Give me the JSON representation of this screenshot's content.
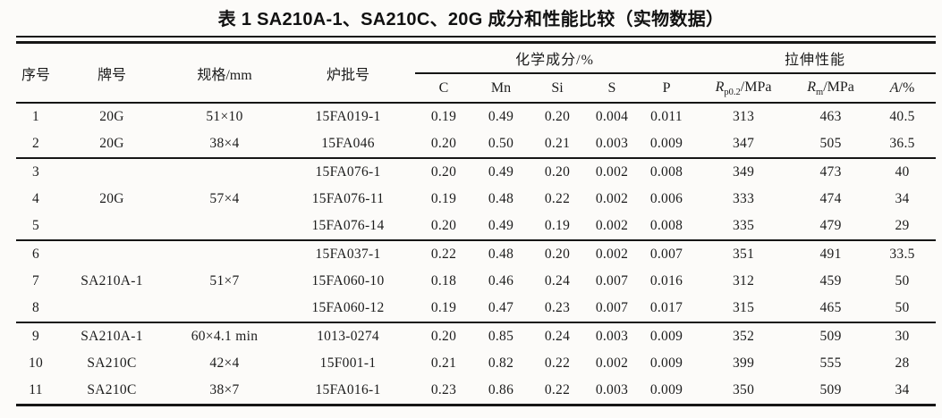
{
  "title": "表 1  SA210A-1、SA210C、20G 成分和性能比较（实物数据）",
  "colors": {
    "paper_background": "#fcfbf9",
    "rule_color": "#161616",
    "text_color": "#1c1c1c"
  },
  "header": {
    "seq": "序号",
    "grade": "牌号",
    "spec": "规格/mm",
    "batch": "炉批号",
    "chem_group": "化学成分/%",
    "tensile_group": "拉伸性能",
    "chem": [
      "C",
      "Mn",
      "Si",
      "S",
      "P"
    ],
    "rp": {
      "base": "R",
      "sub": "p0.2",
      "rest": "/MPa"
    },
    "rm": {
      "base": "R",
      "sub": "m",
      "rest": "/MPa"
    },
    "a": {
      "base": "A",
      "rest": "/%"
    }
  },
  "table": {
    "groups": [
      {
        "rows": [
          {
            "seq": "1",
            "grade": "20G",
            "spec": "51×10",
            "batch": "15FA019-1",
            "chem": [
              "0.19",
              "0.49",
              "0.20",
              "0.004",
              "0.011"
            ],
            "rp": "313",
            "rm": "463",
            "a": "40.5"
          },
          {
            "seq": "2",
            "grade": "20G",
            "spec": "38×4",
            "batch": "15FA046",
            "chem": [
              "0.20",
              "0.50",
              "0.21",
              "0.003",
              "0.009"
            ],
            "rp": "347",
            "rm": "505",
            "a": "36.5"
          }
        ]
      },
      {
        "shared": {
          "grade": "20G",
          "spec": "57×4"
        },
        "rows": [
          {
            "seq": "3",
            "batch": "15FA076-1",
            "chem": [
              "0.20",
              "0.49",
              "0.20",
              "0.002",
              "0.008"
            ],
            "rp": "349",
            "rm": "473",
            "a": "40"
          },
          {
            "seq": "4",
            "batch": "15FA076-11",
            "chem": [
              "0.19",
              "0.48",
              "0.22",
              "0.002",
              "0.006"
            ],
            "rp": "333",
            "rm": "474",
            "a": "34"
          },
          {
            "seq": "5",
            "batch": "15FA076-14",
            "chem": [
              "0.20",
              "0.49",
              "0.19",
              "0.002",
              "0.008"
            ],
            "rp": "335",
            "rm": "479",
            "a": "29"
          }
        ]
      },
      {
        "shared": {
          "grade": "SA210A-1",
          "spec": "51×7"
        },
        "rows": [
          {
            "seq": "6",
            "batch": "15FA037-1",
            "chem": [
              "0.22",
              "0.48",
              "0.20",
              "0.002",
              "0.007"
            ],
            "rp": "351",
            "rm": "491",
            "a": "33.5"
          },
          {
            "seq": "7",
            "batch": "15FA060-10",
            "chem": [
              "0.18",
              "0.46",
              "0.24",
              "0.007",
              "0.016"
            ],
            "rp": "312",
            "rm": "459",
            "a": "50"
          },
          {
            "seq": "8",
            "batch": "15FA060-12",
            "chem": [
              "0.19",
              "0.47",
              "0.23",
              "0.007",
              "0.017"
            ],
            "rp": "315",
            "rm": "465",
            "a": "50"
          }
        ]
      },
      {
        "rows": [
          {
            "seq": "9",
            "grade": "SA210A-1",
            "spec": "60×4.1 min",
            "batch": "1013-0274",
            "chem": [
              "0.20",
              "0.85",
              "0.24",
              "0.003",
              "0.009"
            ],
            "rp": "352",
            "rm": "509",
            "a": "30"
          },
          {
            "seq": "10",
            "grade": "SA210C",
            "spec": "42×4",
            "batch": "15F001-1",
            "chem": [
              "0.21",
              "0.82",
              "0.22",
              "0.002",
              "0.009"
            ],
            "rp": "399",
            "rm": "555",
            "a": "28"
          },
          {
            "seq": "11",
            "grade": "SA210C",
            "spec": "38×7",
            "batch": "15FA016-1",
            "chem": [
              "0.23",
              "0.86",
              "0.22",
              "0.003",
              "0.009"
            ],
            "rp": "350",
            "rm": "509",
            "a": "34"
          }
        ]
      }
    ]
  }
}
